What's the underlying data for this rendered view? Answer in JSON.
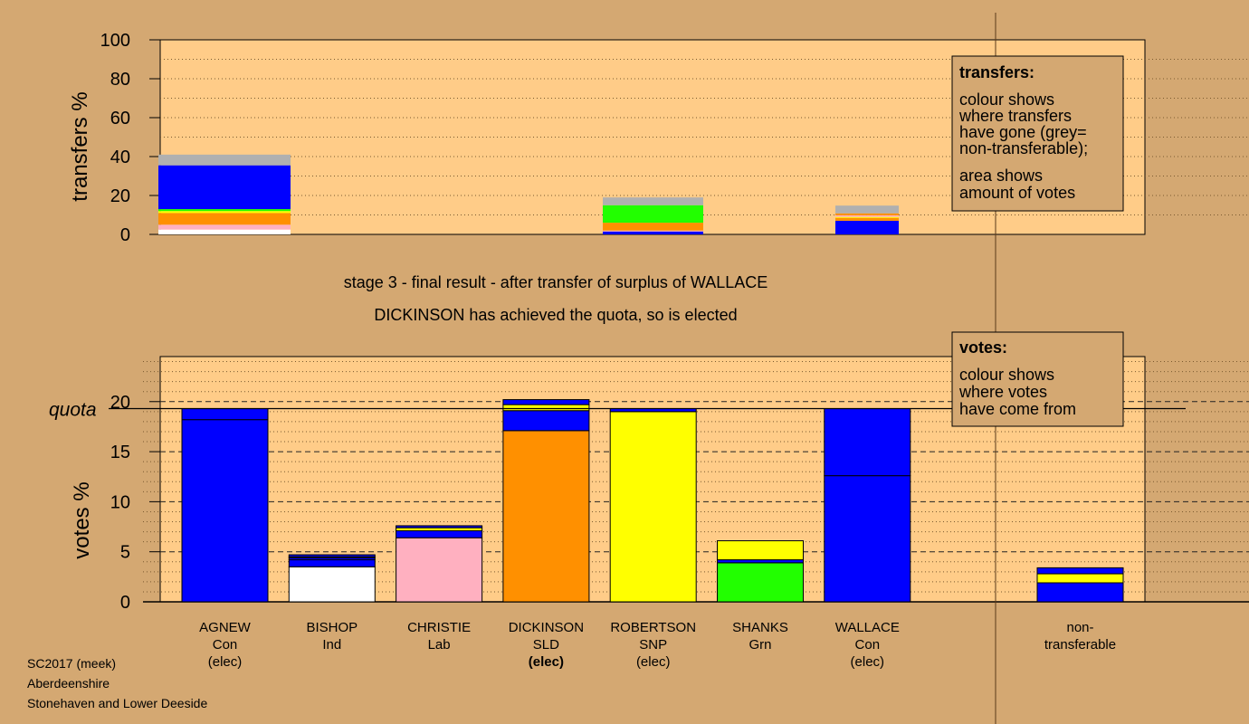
{
  "chart_data": {
    "type": "bar",
    "stage_line1": "stage 3 - final result - after transfer of surplus of WALLACE",
    "stage_line2": "DICKINSON has achieved the quota, so is elected",
    "footer": [
      "SC2017 (meek)",
      "Aberdeenshire",
      "Stonehaven and Lower Deeside"
    ],
    "colors": {
      "page_bg": "#d4a872",
      "panel_bg": "#ffcc88",
      "Con": "#0000ff",
      "Ind": "#ffffff",
      "Lab": "#ffb0c0",
      "SLD": "#ff9000",
      "SNP": "#ffff00",
      "Grn": "#22ff00",
      "nontransferable": "#b0b0b0"
    },
    "top_chart": {
      "ylabel": "transfers %",
      "ylim": [
        0,
        100
      ],
      "yticks": [
        0,
        20,
        40,
        60,
        80,
        100
      ],
      "legend_title": "transfers:",
      "legend_lines": [
        "colour shows",
        "where transfers",
        "have gone (grey=",
        "non-transferable);"
      ],
      "legend_lines2": [
        "area shows",
        "amount of votes"
      ],
      "transfers": [
        {
          "source": "AGNEW",
          "segments": [
            {
              "party": "Ind",
              "value": 2.5
            },
            {
              "party": "Lab",
              "value": 2.5
            },
            {
              "party": "SLD",
              "value": 6
            },
            {
              "party": "SNP",
              "value": 1
            },
            {
              "party": "Grn",
              "value": 1
            },
            {
              "party": "Con",
              "value": 22.5
            },
            {
              "party": "nontransferable",
              "value": 5.5
            }
          ]
        },
        {
          "source": "ROBERTSON",
          "segments": [
            {
              "party": "Con",
              "value": 1.5
            },
            {
              "party": "Lab",
              "value": 0.5
            },
            {
              "party": "SLD",
              "value": 4
            },
            {
              "party": "Grn",
              "value": 9
            },
            {
              "party": "nontransferable",
              "value": 4
            }
          ]
        },
        {
          "source": "WALLACE",
          "segments": [
            {
              "party": "Con",
              "value": 7
            },
            {
              "party": "SLD",
              "value": 1.5
            },
            {
              "party": "SNP",
              "value": 0.5
            },
            {
              "party": "Lab",
              "value": 0.8
            },
            {
              "party": "SLD",
              "value": 1
            },
            {
              "party": "nontransferable",
              "value": 4
            }
          ]
        }
      ]
    },
    "bottom_chart": {
      "ylabel": "votes %",
      "quota_label": "quota",
      "quota": 19.3,
      "ylim": [
        0,
        24.5
      ],
      "yticks": [
        0,
        5,
        10,
        15,
        20
      ],
      "legend_title": "votes:",
      "legend_lines": [
        "colour shows",
        "where votes",
        "have come from"
      ],
      "candidates": [
        {
          "name": "AGNEW",
          "party": "Con",
          "status": "(elec)",
          "status_bold": false,
          "segments": [
            {
              "party": "Con",
              "value": 18.2
            },
            {
              "party": "Con",
              "value": 1.1
            }
          ]
        },
        {
          "name": "BISHOP",
          "party": "Ind",
          "status": "",
          "status_bold": false,
          "segments": [
            {
              "party": "Ind",
              "value": 3.5
            },
            {
              "party": "Con",
              "value": 0.7
            },
            {
              "party": "Con",
              "value": 0.2
            },
            {
              "party": "SNP",
              "value": 0.1
            },
            {
              "party": "Con",
              "value": 0.2
            }
          ]
        },
        {
          "name": "CHRISTIE",
          "party": "Lab",
          "status": "",
          "status_bold": false,
          "segments": [
            {
              "party": "Lab",
              "value": 6.4
            },
            {
              "party": "Con",
              "value": 0.7
            },
            {
              "party": "SNP",
              "value": 0.3
            },
            {
              "party": "Con",
              "value": 0.2
            }
          ]
        },
        {
          "name": "DICKINSON",
          "party": "SLD",
          "status": "(elec)",
          "status_bold": true,
          "segments": [
            {
              "party": "SLD",
              "value": 17.1
            },
            {
              "party": "Con",
              "value": 2.0
            },
            {
              "party": "SNP",
              "value": 0.6
            },
            {
              "party": "Con",
              "value": 0.5
            }
          ]
        },
        {
          "name": "ROBERTSON",
          "party": "SNP",
          "status": "(elec)",
          "status_bold": false,
          "segments": [
            {
              "party": "SNP",
              "value": 19.0
            },
            {
              "party": "Con",
              "value": 0.3
            }
          ]
        },
        {
          "name": "SHANKS",
          "party": "Grn",
          "status": "",
          "status_bold": false,
          "segments": [
            {
              "party": "Grn",
              "value": 3.9
            },
            {
              "party": "Con",
              "value": 0.3
            },
            {
              "party": "SNP",
              "value": 1.9
            }
          ]
        },
        {
          "name": "WALLACE",
          "party": "Con",
          "status": "(elec)",
          "status_bold": false,
          "segments": [
            {
              "party": "Con",
              "value": 12.6
            },
            {
              "party": "Con",
              "value": 6.7
            }
          ]
        }
      ],
      "nontransferable": {
        "label_line1": "non-",
        "label_line2": "transferable",
        "segments": [
          {
            "party": "Con",
            "value": 1.9
          },
          {
            "party": "SNP",
            "value": 0.9
          },
          {
            "party": "Con",
            "value": 0.6
          }
        ]
      }
    }
  }
}
